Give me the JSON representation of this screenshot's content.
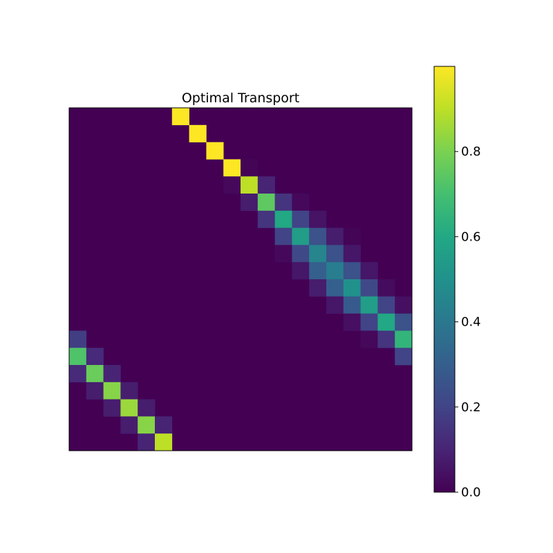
{
  "chart_data": {
    "type": "heatmap",
    "title": "Optimal Transport",
    "xlabel": "",
    "ylabel": "",
    "rows": 20,
    "cols": 20,
    "colormap": "viridis",
    "vmin": 0.0,
    "vmax": 1.0,
    "colorbar": {
      "ticks": [
        0.0,
        0.2,
        0.4,
        0.6,
        0.8
      ],
      "tick_labels": [
        "0.0",
        "0.2",
        "0.4",
        "0.6",
        "0.8"
      ]
    },
    "grid": false,
    "axes_ticks_visible": false,
    "cells": [
      [
        0,
        6,
        1.0
      ],
      [
        1,
        7,
        1.0
      ],
      [
        2,
        8,
        1.0
      ],
      [
        3,
        9,
        1.0
      ],
      [
        3,
        10,
        0.01
      ],
      [
        4,
        9,
        0.02
      ],
      [
        4,
        10,
        0.9
      ],
      [
        4,
        11,
        0.1
      ],
      [
        5,
        10,
        0.08
      ],
      [
        5,
        11,
        0.75
      ],
      [
        5,
        12,
        0.15
      ],
      [
        5,
        13,
        0.02
      ],
      [
        6,
        11,
        0.15
      ],
      [
        6,
        12,
        0.6
      ],
      [
        6,
        13,
        0.2
      ],
      [
        6,
        14,
        0.05
      ],
      [
        7,
        12,
        0.2
      ],
      [
        7,
        13,
        0.55
      ],
      [
        7,
        14,
        0.25
      ],
      [
        7,
        15,
        0.08
      ],
      [
        7,
        16,
        0.01
      ],
      [
        8,
        12,
        0.02
      ],
      [
        8,
        13,
        0.22
      ],
      [
        8,
        14,
        0.45
      ],
      [
        8,
        15,
        0.25
      ],
      [
        8,
        16,
        0.06
      ],
      [
        9,
        13,
        0.06
      ],
      [
        9,
        14,
        0.3
      ],
      [
        9,
        15,
        0.42
      ],
      [
        9,
        16,
        0.25
      ],
      [
        9,
        17,
        0.06
      ],
      [
        10,
        14,
        0.08
      ],
      [
        10,
        15,
        0.3
      ],
      [
        10,
        16,
        0.5
      ],
      [
        10,
        17,
        0.22
      ],
      [
        10,
        18,
        0.03
      ],
      [
        11,
        15,
        0.06
      ],
      [
        11,
        16,
        0.28
      ],
      [
        11,
        17,
        0.55
      ],
      [
        11,
        18,
        0.2
      ],
      [
        11,
        19,
        0.04
      ],
      [
        12,
        16,
        0.04
      ],
      [
        12,
        17,
        0.2
      ],
      [
        12,
        18,
        0.6
      ],
      [
        12,
        19,
        0.25
      ],
      [
        13,
        0,
        0.18
      ],
      [
        13,
        17,
        0.02
      ],
      [
        13,
        18,
        0.15
      ],
      [
        13,
        19,
        0.65
      ],
      [
        14,
        0,
        0.72
      ],
      [
        14,
        1,
        0.12
      ],
      [
        14,
        19,
        0.2
      ],
      [
        15,
        0,
        0.12
      ],
      [
        15,
        1,
        0.77
      ],
      [
        15,
        2,
        0.1
      ],
      [
        16,
        1,
        0.08
      ],
      [
        16,
        2,
        0.82
      ],
      [
        16,
        3,
        0.08
      ],
      [
        17,
        2,
        0.08
      ],
      [
        17,
        3,
        0.85
      ],
      [
        17,
        4,
        0.08
      ],
      [
        18,
        3,
        0.08
      ],
      [
        18,
        4,
        0.82
      ],
      [
        18,
        5,
        0.1
      ],
      [
        19,
        4,
        0.1
      ],
      [
        19,
        5,
        0.9
      ]
    ]
  }
}
